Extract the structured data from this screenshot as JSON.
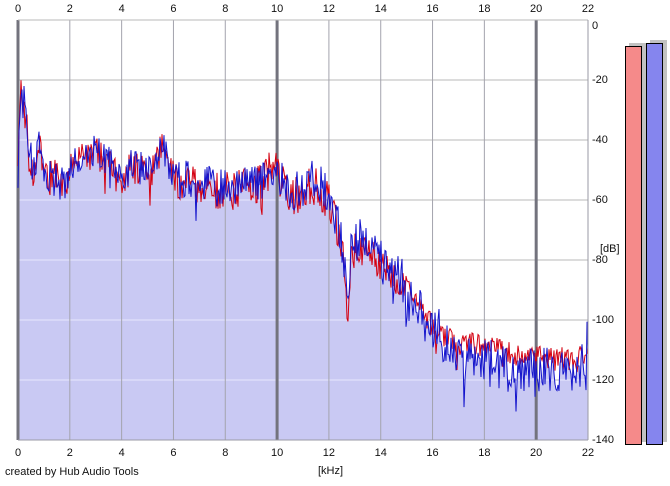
{
  "credit": "created by Hub Audio Tools",
  "axes": {
    "x_unit_label": "[kHz]",
    "y_unit_label": "[dB]"
  },
  "chart_data": {
    "type": "line",
    "title": "",
    "xlabel": "[kHz]",
    "ylabel": "[dB]",
    "xlim": [
      0,
      22
    ],
    "ylim": [
      -140,
      0
    ],
    "x_ticks": [
      0,
      2,
      4,
      6,
      8,
      10,
      12,
      14,
      16,
      18,
      20,
      22
    ],
    "x_major_gridlines": [
      0,
      10,
      20
    ],
    "y_ticks": [
      0,
      -20,
      -40,
      -60,
      -80,
      -100,
      -120,
      -140
    ],
    "grid": true,
    "legend": "none",
    "plot_bg": "#ffffff",
    "grid_color_h": "#b9b9b9",
    "grid_color_h_over_fill": "#e8e8fc",
    "grid_color_v_minor": "#a3a3ad",
    "grid_color_v_major": "#73737d",
    "series": [
      {
        "name": "red-trace",
        "color": "#d40010",
        "noise_db": [
          [
            0,
            6
          ],
          [
            5,
            6
          ],
          [
            12,
            7
          ],
          [
            16,
            4
          ],
          [
            22,
            4
          ]
        ],
        "envelope": [
          [
            0,
            -50
          ],
          [
            0.05,
            -30
          ],
          [
            0.12,
            -15
          ],
          [
            0.2,
            -34
          ],
          [
            0.3,
            -30
          ],
          [
            0.4,
            -44
          ],
          [
            0.55,
            -52
          ],
          [
            0.7,
            -48
          ],
          [
            0.85,
            -44
          ],
          [
            1,
            -50
          ],
          [
            1.2,
            -53
          ],
          [
            1.4,
            -50
          ],
          [
            1.6,
            -54
          ],
          [
            1.8,
            -57
          ],
          [
            2,
            -51
          ],
          [
            2.2,
            -48
          ],
          [
            2.4,
            -47
          ],
          [
            2.6,
            -45
          ],
          [
            2.8,
            -44
          ],
          [
            3,
            -45
          ],
          [
            3.2,
            -46
          ],
          [
            3.5,
            -49
          ],
          [
            3.8,
            -52
          ],
          [
            4,
            -53
          ],
          [
            4.2,
            -51
          ],
          [
            4.5,
            -48
          ],
          [
            4.8,
            -51
          ],
          [
            5,
            -53
          ],
          [
            5.2,
            -49
          ],
          [
            5.5,
            -43
          ],
          [
            5.8,
            -48
          ],
          [
            6,
            -53
          ],
          [
            6.3,
            -55
          ],
          [
            6.6,
            -53
          ],
          [
            7,
            -57
          ],
          [
            7.3,
            -55
          ],
          [
            7.6,
            -57
          ],
          [
            8,
            -56
          ],
          [
            8.3,
            -57
          ],
          [
            8.6,
            -55
          ],
          [
            9,
            -56
          ],
          [
            9.3,
            -54
          ],
          [
            9.6,
            -51
          ],
          [
            9.9,
            -50
          ],
          [
            10.2,
            -55
          ],
          [
            10.5,
            -59
          ],
          [
            10.8,
            -58
          ],
          [
            11.1,
            -57
          ],
          [
            11.4,
            -55
          ],
          [
            11.7,
            -57
          ],
          [
            12,
            -61
          ],
          [
            12.3,
            -70
          ],
          [
            12.55,
            -80
          ],
          [
            12.7,
            -95
          ],
          [
            12.85,
            -80
          ],
          [
            13,
            -75
          ],
          [
            13.3,
            -76
          ],
          [
            13.6,
            -78
          ],
          [
            14,
            -82
          ],
          [
            14.4,
            -85
          ],
          [
            14.8,
            -88
          ],
          [
            15.2,
            -92
          ],
          [
            15.6,
            -97
          ],
          [
            16,
            -102
          ],
          [
            16.4,
            -105
          ],
          [
            16.8,
            -107
          ],
          [
            17.2,
            -108
          ],
          [
            17.6,
            -108
          ],
          [
            18,
            -109
          ],
          [
            18.5,
            -110
          ],
          [
            19,
            -111
          ],
          [
            19.5,
            -112
          ],
          [
            20,
            -112
          ],
          [
            20.5,
            -113
          ],
          [
            21,
            -113
          ],
          [
            21.5,
            -114
          ],
          [
            21.8,
            -112
          ],
          [
            22,
            -108
          ]
        ]
      },
      {
        "name": "blue-trace",
        "color": "#1414cc",
        "fill": "#c9c9f3",
        "noise_db": [
          [
            0,
            6
          ],
          [
            5,
            6
          ],
          [
            12,
            7
          ],
          [
            16,
            8
          ],
          [
            22,
            8
          ]
        ],
        "envelope": [
          [
            0,
            -50
          ],
          [
            0.05,
            -35
          ],
          [
            0.12,
            -23
          ],
          [
            0.2,
            -28
          ],
          [
            0.3,
            -25
          ],
          [
            0.4,
            -40
          ],
          [
            0.55,
            -50
          ],
          [
            0.7,
            -46
          ],
          [
            0.85,
            -42
          ],
          [
            1,
            -49
          ],
          [
            1.2,
            -52
          ],
          [
            1.4,
            -49
          ],
          [
            1.6,
            -53
          ],
          [
            1.8,
            -56
          ],
          [
            2,
            -50
          ],
          [
            2.2,
            -47
          ],
          [
            2.4,
            -46
          ],
          [
            2.6,
            -44
          ],
          [
            2.8,
            -43
          ],
          [
            3,
            -44
          ],
          [
            3.2,
            -45
          ],
          [
            3.5,
            -48
          ],
          [
            3.8,
            -51
          ],
          [
            4,
            -52
          ],
          [
            4.2,
            -50
          ],
          [
            4.5,
            -47
          ],
          [
            4.8,
            -50
          ],
          [
            5,
            -52
          ],
          [
            5.2,
            -48
          ],
          [
            5.5,
            -42
          ],
          [
            5.8,
            -47
          ],
          [
            6,
            -52
          ],
          [
            6.3,
            -54
          ],
          [
            6.6,
            -52
          ],
          [
            7,
            -56
          ],
          [
            7.3,
            -54
          ],
          [
            7.6,
            -56
          ],
          [
            8,
            -55
          ],
          [
            8.3,
            -56
          ],
          [
            8.6,
            -54
          ],
          [
            9,
            -55
          ],
          [
            9.3,
            -53
          ],
          [
            9.6,
            -50
          ],
          [
            9.9,
            -49
          ],
          [
            10.2,
            -54
          ],
          [
            10.5,
            -58
          ],
          [
            10.8,
            -57
          ],
          [
            11.1,
            -56
          ],
          [
            11.4,
            -53
          ],
          [
            11.7,
            -55
          ],
          [
            12,
            -59
          ],
          [
            12.3,
            -67
          ],
          [
            12.55,
            -77
          ],
          [
            12.7,
            -90
          ],
          [
            12.85,
            -78
          ],
          [
            13,
            -73
          ],
          [
            13.3,
            -74
          ],
          [
            13.6,
            -76
          ],
          [
            14,
            -80
          ],
          [
            14.4,
            -83
          ],
          [
            14.8,
            -87
          ],
          [
            15.2,
            -91
          ],
          [
            15.6,
            -96
          ],
          [
            16,
            -101
          ],
          [
            16.4,
            -106
          ],
          [
            16.8,
            -110
          ],
          [
            17.2,
            -112
          ],
          [
            17.6,
            -113
          ],
          [
            18,
            -114
          ],
          [
            18.5,
            -115
          ],
          [
            19,
            -115
          ],
          [
            19.5,
            -116
          ],
          [
            20,
            -116
          ],
          [
            20.5,
            -117
          ],
          [
            21,
            -117
          ],
          [
            21.5,
            -119
          ],
          [
            21.8,
            -115
          ],
          [
            22,
            -107
          ]
        ]
      }
    ],
    "meters": [
      {
        "name": "level-meter-red",
        "color": "#f58a8a",
        "value_db": -8.7
      },
      {
        "name": "level-meter-blue",
        "color": "#8585ee",
        "value_db": -7.7
      }
    ]
  }
}
